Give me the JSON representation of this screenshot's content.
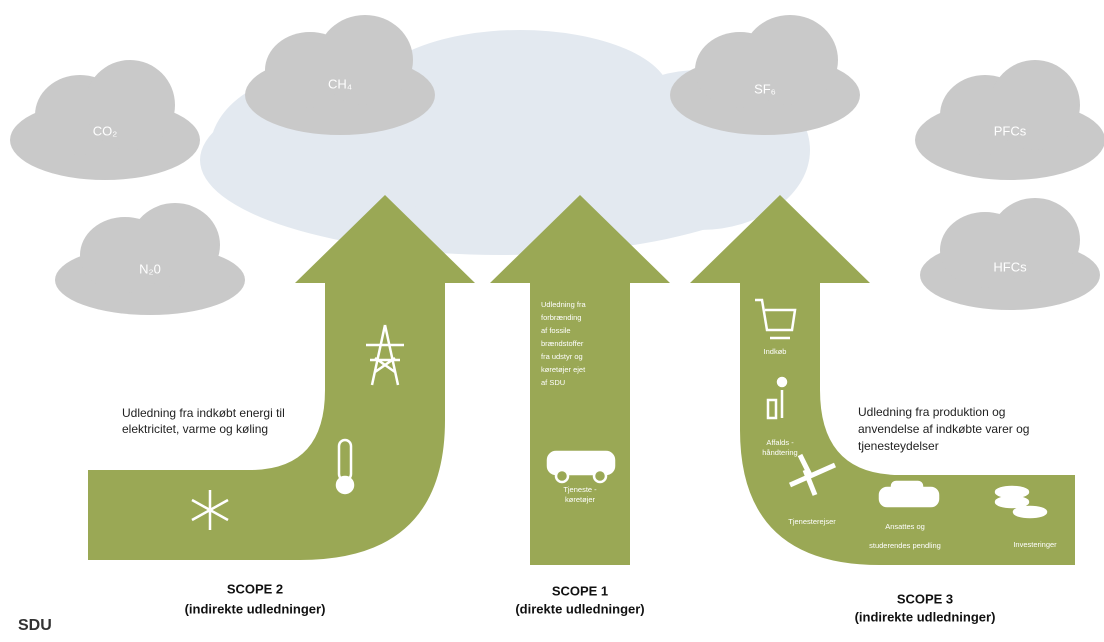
{
  "gases": [
    "CO₂",
    "CH₄",
    "N₂0",
    "SF₆",
    "PFCs",
    "HFCs"
  ],
  "scope2": {
    "title": "SCOPE 2",
    "subtitle": "(indirekte udledninger)",
    "description": [
      "Udledning fra indkøbt energi til",
      "elektricitet, varme og køling"
    ]
  },
  "scope1": {
    "title": "SCOPE 1",
    "subtitle": "(direkte udledninger)",
    "description": [
      "Udledning fra",
      "forbrænding",
      "af fossile",
      "brændstoffer",
      "fra udstyr og",
      "køretøjer ejet",
      "af SDU"
    ],
    "icon_label": [
      "Tjeneste -",
      "køretøjer"
    ]
  },
  "scope3": {
    "title": "SCOPE 3",
    "subtitle": "(indirekte udledninger)",
    "description": [
      "Udledning fra produktion og",
      "anvendelse af indkøbte varer og",
      "tjenesteydelser"
    ],
    "icons": [
      [
        "Indkøb"
      ],
      [
        "Affalds -",
        "håndtering"
      ],
      [
        "Tjenesterejser"
      ],
      [
        "Ansattes og",
        "studerendes pendling"
      ],
      [
        "Investeringer"
      ]
    ]
  },
  "logo": "SDU"
}
